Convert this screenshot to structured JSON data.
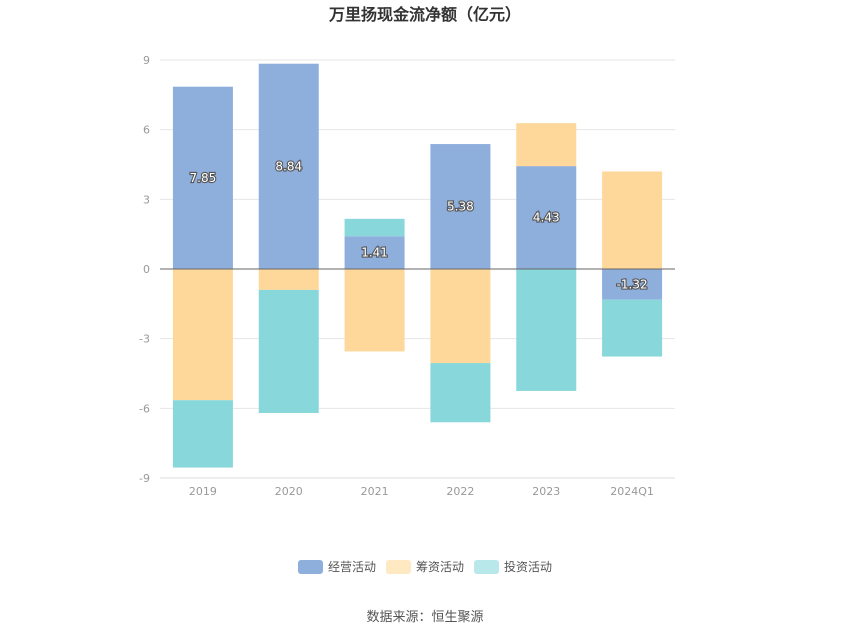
{
  "chart_data": {
    "type": "bar",
    "stacked": true,
    "title": "万里扬现金流净额（亿元）",
    "categories": [
      "2019",
      "2020",
      "2021",
      "2022",
      "2023",
      "2024Q1"
    ],
    "series": [
      {
        "name": "经营活动",
        "color": "#8eaedc",
        "values": [
          7.85,
          8.84,
          1.41,
          5.38,
          4.43,
          -1.32
        ]
      },
      {
        "name": "筹资活动",
        "color": "#fdd89a",
        "values": [
          -5.65,
          -0.9,
          -3.55,
          -4.05,
          1.85,
          4.2
        ]
      },
      {
        "name": "投资活动",
        "color": "#88d7da",
        "values": [
          -2.9,
          -5.3,
          0.75,
          -2.55,
          -5.25,
          -2.45
        ]
      }
    ],
    "data_labels": [
      "7.85",
      "8.84",
      "1.41",
      "5.38",
      "4.43",
      "-1.32"
    ],
    "ylim": [
      -9,
      9
    ],
    "yticks": [
      "9",
      "6",
      "3",
      "0",
      "-3",
      "-6",
      "-9"
    ],
    "ytick_values": [
      9,
      6,
      3,
      0,
      -3,
      -6,
      -9
    ],
    "grid": true,
    "legend_position": "bottom"
  },
  "legend": {
    "items": [
      {
        "label": "经营活动",
        "color": "#8eaedc"
      },
      {
        "label": "筹资活动",
        "color": "#ffe9c2"
      },
      {
        "label": "投资活动",
        "color": "#b9e8ea"
      }
    ]
  },
  "source": "数据来源：恒生聚源"
}
